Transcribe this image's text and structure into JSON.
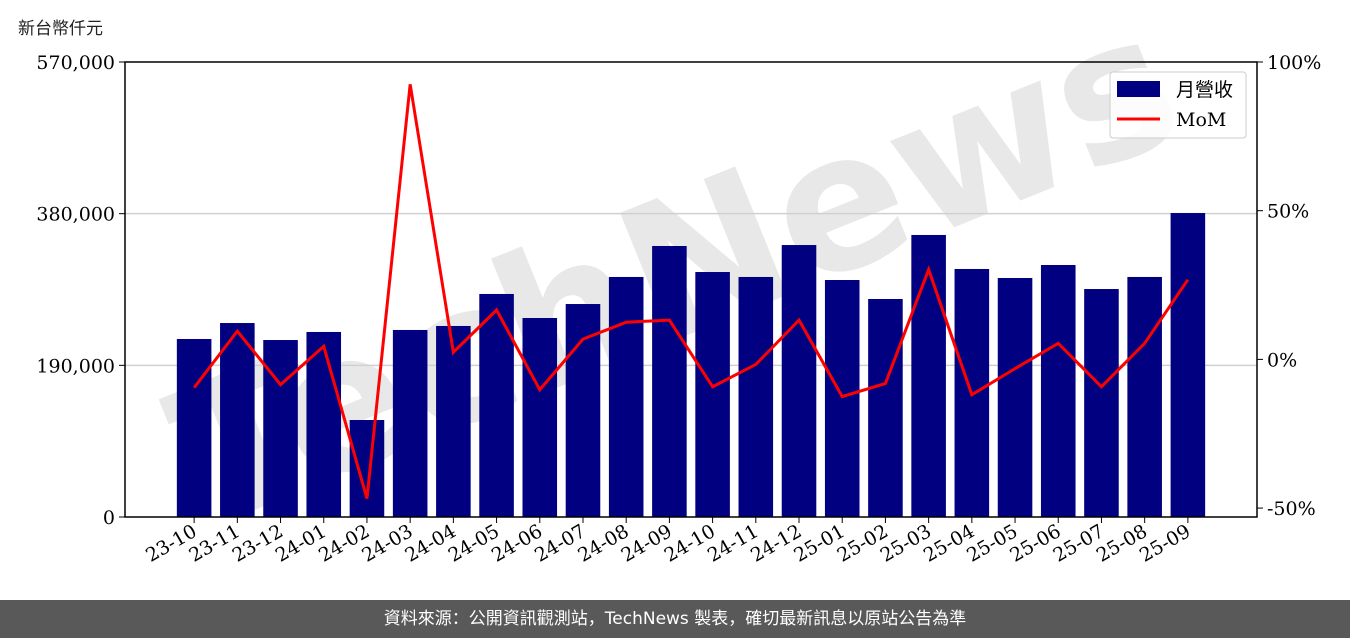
{
  "chart_data": {
    "type": "bar",
    "ylabel": "新台幣仟元",
    "categories": [
      "23-10",
      "23-11",
      "23-12",
      "24-01",
      "24-02",
      "24-03",
      "24-04",
      "24-05",
      "24-06",
      "24-07",
      "24-08",
      "24-09",
      "24-10",
      "24-11",
      "24-12",
      "25-01",
      "25-02",
      "25-03",
      "25-04",
      "25-05",
      "25-06",
      "25-07",
      "25-08",
      "25-09"
    ],
    "series": [
      {
        "name": "月營收",
        "type": "bar",
        "axis": "left",
        "color": "#000080",
        "values": [
          223000,
          243000,
          221700,
          231800,
          121500,
          234300,
          239300,
          279400,
          249300,
          266800,
          300700,
          339500,
          306900,
          300700,
          340700,
          296900,
          273100,
          353300,
          310700,
          299400,
          315700,
          285600,
          300700,
          380800
        ]
      },
      {
        "name": "MoM",
        "type": "line",
        "axis": "right",
        "color": "#ff0000",
        "values": [
          -9.5,
          9.5,
          -8.5,
          4.4,
          -46.8,
          92.5,
          2.4,
          16.6,
          -10.2,
          6.8,
          12.5,
          13.2,
          -9.2,
          -1.7,
          13.2,
          -12.5,
          -8.1,
          30.2,
          -11.9,
          -3.1,
          5.4,
          -9.2,
          5.4,
          26.8
        ]
      }
    ],
    "ylim": [
      0,
      570000
    ],
    "y_ticks": [
      "0",
      "190,000",
      "380,000",
      "570,000"
    ],
    "y_tick_values": [
      0,
      190000,
      380000,
      570000
    ],
    "y2lim": [
      -53,
      100
    ],
    "y2_ticks": [
      "-50%",
      "0%",
      "50%",
      "100%"
    ],
    "y2_tick_values": [
      -50,
      0,
      50,
      100
    ],
    "grid": "horizontal",
    "legend_placement": "top-right",
    "watermark": "TechNews"
  },
  "footer": "資料來源：公開資訊觀測站，TechNews 製表，確切最新訊息以原站公告為準"
}
